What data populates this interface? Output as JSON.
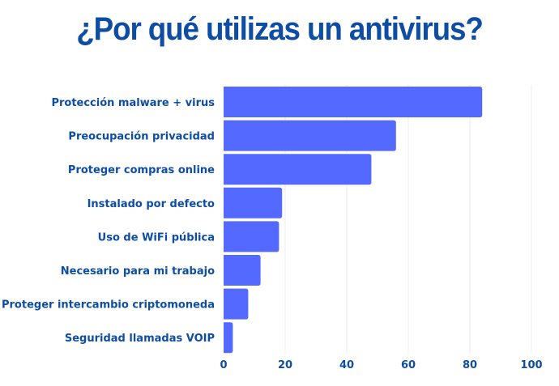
{
  "chart_data": {
    "type": "bar",
    "orientation": "horizontal",
    "title": "¿Por qué utilizas un antivirus?",
    "xlabel": "",
    "ylabel": "",
    "categories": [
      "Protección malware + virus",
      "Preocupación privacidad",
      "Proteger compras online",
      "Instalado por defecto",
      "Uso de WiFi pública",
      "Necesario para mi trabajo",
      "Proteger intercambio criptomoneda",
      "Seguridad llamadas VOIP"
    ],
    "values": [
      84,
      56,
      48,
      19,
      18,
      12,
      8,
      3
    ],
    "xlim": [
      0,
      100
    ],
    "xticks": [
      0,
      20,
      40,
      60,
      80,
      100
    ],
    "grid": true,
    "legend": "none",
    "colors": {
      "bar": "#5469FF",
      "text": "#0E4DA4",
      "grid": "#EEEEF2"
    }
  }
}
